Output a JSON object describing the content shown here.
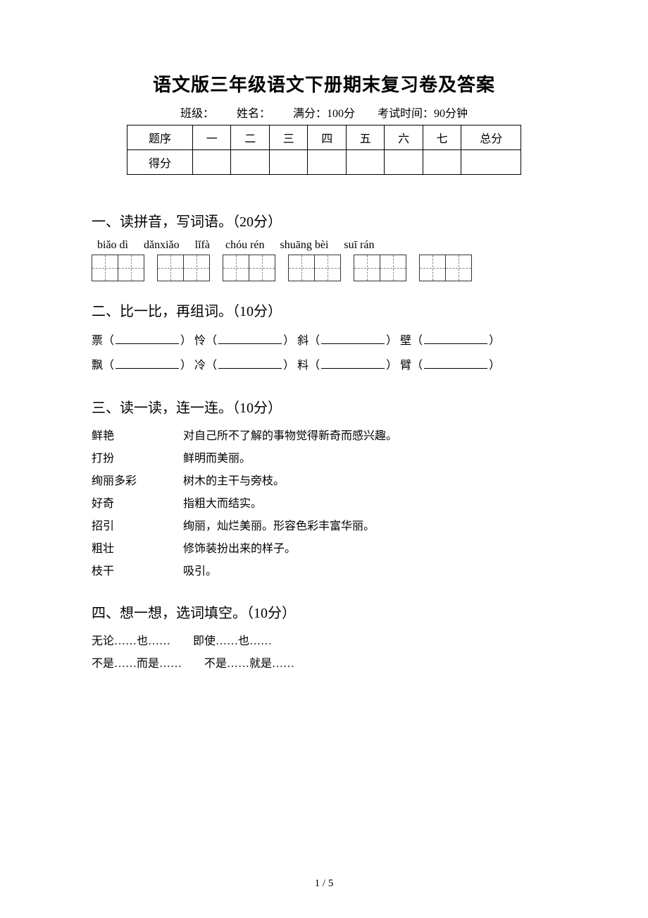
{
  "title": "语文版三年级语文下册期末复习卷及答案",
  "meta": {
    "class_label": "班级：",
    "name_label": "姓名：",
    "full_score_label": "满分：100分",
    "time_label": "考试时间：90分钟"
  },
  "score_table": {
    "row_labels": [
      "题序",
      "得分"
    ],
    "columns": [
      "一",
      "二",
      "三",
      "四",
      "五",
      "六",
      "七",
      "总分"
    ]
  },
  "section1": {
    "heading": "一、读拼音，写词语。（20分）",
    "pinyins": [
      "biǎo dì",
      "dǎnxiǎo",
      "lǐfà",
      "chóu rén",
      "shuāng bèi",
      "suī rán"
    ],
    "groups": [
      2,
      2,
      2,
      2,
      2,
      2
    ]
  },
  "section2": {
    "heading": "二、比一比，再组词。（10分）",
    "rows": [
      [
        "票",
        "怜",
        "斜",
        "壁"
      ],
      [
        "飘",
        "冷",
        "料",
        "臂"
      ]
    ]
  },
  "section3": {
    "heading": "三、读一读，连一连。（10分）",
    "items": [
      {
        "term": "鲜艳",
        "def": "对自己所不了解的事物觉得新奇而感兴趣。"
      },
      {
        "term": "打扮",
        "def": "鲜明而美丽。"
      },
      {
        "term": "绚丽多彩",
        "def": "树木的主干与旁枝。"
      },
      {
        "term": "好奇",
        "def": "指粗大而结实。"
      },
      {
        "term": "招引",
        "def": "绚丽，灿烂美丽。形容色彩丰富华丽。"
      },
      {
        "term": "粗壮",
        "def": "修饰装扮出来的样子。"
      },
      {
        "term": "枝干",
        "def": "吸引。"
      }
    ]
  },
  "section4": {
    "heading": "四、想一想，选词填空。（10分）",
    "lines": [
      "无论……也……　　即使……也……",
      "不是……而是……　　不是……就是……"
    ]
  },
  "pagenum": "1 / 5",
  "paren_open": "（",
  "paren_close": "）"
}
